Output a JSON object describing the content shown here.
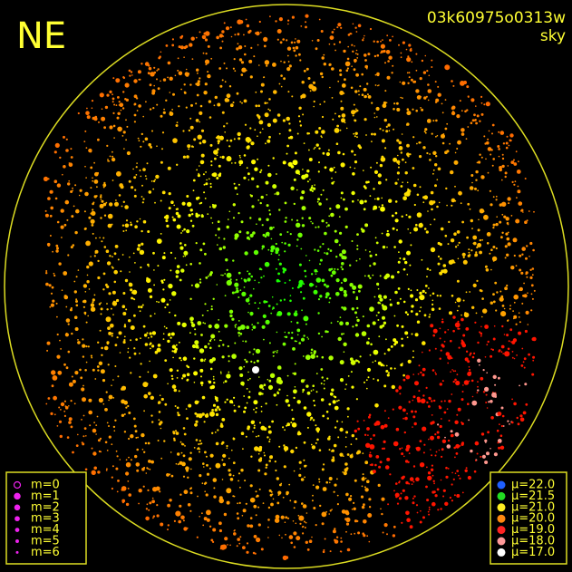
{
  "header": {
    "corner": "NE",
    "id": "03k60975o0313w",
    "subtitle": "sky"
  },
  "magnitude_legend": {
    "items": [
      "m=0",
      "m=1",
      "m=2",
      "m=3",
      "m=4",
      "m=5",
      "m=6"
    ]
  },
  "brightness_legend": {
    "items": [
      {
        "label": "μ=22.0",
        "color": "#1f5fff"
      },
      {
        "label": "μ=21.5",
        "color": "#22dd22"
      },
      {
        "label": "μ=21.0",
        "color": "#ffee22"
      },
      {
        "label": "μ=20.0",
        "color": "#ff8811"
      },
      {
        "label": "μ=19.0",
        "color": "#ff2222"
      },
      {
        "label": "μ=18.0",
        "color": "#ff9999"
      },
      {
        "label": "μ=17.0",
        "color": "#ffffff"
      }
    ]
  }
}
